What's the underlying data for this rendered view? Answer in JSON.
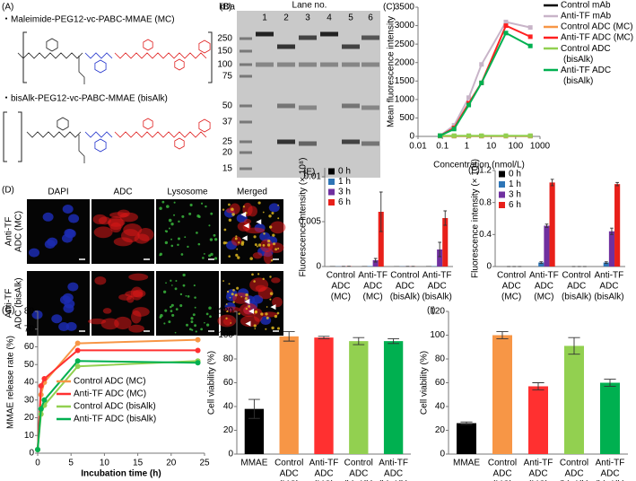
{
  "panel_a": {
    "label": "(A)",
    "items": [
      "・Maleimide-PEG12-vc-PABC-MMAE (MC)",
      "・bisAlk-PEG12-vc-PABC-MMAE (bisAlk)"
    ]
  },
  "panel_b": {
    "label": "(B)",
    "unit": "kDa",
    "lane_title": "Lane no.",
    "lanes": [
      "1",
      "2",
      "3",
      "4",
      "5",
      "6"
    ],
    "markers": [
      "250",
      "150",
      "100",
      "75",
      "50",
      "37",
      "25",
      "20",
      "15"
    ]
  },
  "panel_d": {
    "label": "(D)",
    "columns": [
      "DAPI",
      "ADC",
      "Lysosome",
      "Merged"
    ],
    "rows": [
      [
        "Anti-TF",
        "ADC (MC)"
      ],
      [
        "Anti-TF",
        "ADC (bisAlk)"
      ]
    ]
  },
  "chart_data": [
    {
      "type": "line",
      "panel": "(C)",
      "ylabel": "Mean fluorescence intensity",
      "xlabel": "Concentration (nmol/L)",
      "xscale": "log",
      "xlim": [
        0.01,
        1000
      ],
      "xticks": [
        0.01,
        0.1,
        1,
        10,
        100,
        1000
      ],
      "ylim": [
        0,
        3500
      ],
      "yticks": [
        0,
        500,
        1000,
        1500,
        2000,
        2500,
        3000,
        3500
      ],
      "marker": "square",
      "legend": "right",
      "x": [
        0.08,
        0.3,
        1.2,
        4,
        40,
        400
      ],
      "series": [
        {
          "name": "Control mAb",
          "color": "#000000",
          "values": [
            10,
            10,
            10,
            10,
            10,
            10
          ]
        },
        {
          "name": "Anti-TF mAb",
          "color": "#c8b4c8",
          "values": [
            20,
            300,
            1050,
            1950,
            3100,
            2950
          ]
        },
        {
          "name": "Control ADC (MC)",
          "color": "#f79646",
          "values": [
            10,
            10,
            10,
            10,
            10,
            10
          ]
        },
        {
          "name": "Anti-TF ADC (MC)",
          "color": "#ff2020",
          "values": [
            20,
            230,
            900,
            1450,
            3000,
            2700
          ]
        },
        {
          "name": "Control ADC (bisAlk)",
          "color": "#92d050",
          "values": [
            20,
            20,
            20,
            20,
            20,
            20
          ]
        },
        {
          "name": "Anti-TF ADC (bisAlk)",
          "color": "#00b050",
          "values": [
            20,
            200,
            850,
            1450,
            2800,
            2450
          ]
        }
      ]
    },
    {
      "type": "bar",
      "panel": "(E)",
      "ylabel": "Fluorescence intensity (× 10⁸)",
      "ylim": [
        0,
        0.011
      ],
      "yticks": [
        0,
        0.005,
        0.01
      ],
      "legend": "upper left",
      "categories": [
        [
          "Control",
          "ADC",
          "(MC)"
        ],
        [
          "Anti-TF",
          "ADC",
          "(MC)"
        ],
        [
          "Control",
          "ADC",
          "(bisAlk)"
        ],
        [
          "Anti-TF",
          "ADC",
          "(bisAlk)"
        ]
      ],
      "series": [
        {
          "name": "0 h",
          "color": "#000000",
          "values": [
            3e-05,
            3e-05,
            2e-05,
            3e-05
          ]
        },
        {
          "name": "1 h",
          "color": "#2e75b6",
          "values": [
            2e-05,
            5e-05,
            2e-05,
            4e-05
          ]
        },
        {
          "name": "3 h",
          "color": "#7030a0",
          "values": [
            2e-05,
            0.0007,
            2e-05,
            0.0019
          ],
          "errors": [
            0,
            0.0002,
            0,
            0.0008
          ]
        },
        {
          "name": "6 h",
          "color": "#e8201a",
          "values": [
            3e-05,
            0.0061,
            2e-05,
            0.0054
          ],
          "errors": [
            0,
            0.0022,
            0,
            0.0008
          ]
        }
      ]
    },
    {
      "type": "bar",
      "panel": "(F)",
      "ylabel": "Fluorescence intensity (× 10⁸)",
      "ylim": [
        0,
        1.2
      ],
      "yticks": [
        0,
        0.4,
        0.8,
        1.2
      ],
      "legend": "upper left",
      "categories": [
        [
          "Control",
          "ADC",
          "(MC)"
        ],
        [
          "Anti-TF",
          "ADC",
          "(MC)"
        ],
        [
          "Control",
          "ADC",
          "(bisAlk)"
        ],
        [
          "Anti-TF",
          "ADC",
          "(bisAlk)"
        ]
      ],
      "series": [
        {
          "name": "0 h",
          "color": "#000000",
          "values": [
            0,
            0,
            0,
            0
          ]
        },
        {
          "name": "1 h",
          "color": "#2e75b6",
          "values": [
            0,
            0.05,
            0,
            0.05
          ],
          "errors": [
            0,
            0.01,
            0,
            0.01
          ]
        },
        {
          "name": "3 h",
          "color": "#7030a0",
          "values": [
            0,
            0.51,
            0,
            0.44
          ],
          "errors": [
            0,
            0.02,
            0,
            0.04
          ]
        },
        {
          "name": "6 h",
          "color": "#e8201a",
          "values": [
            0,
            1.05,
            0,
            1.03
          ],
          "errors": [
            0,
            0.04,
            0,
            0.02
          ]
        }
      ]
    },
    {
      "type": "line",
      "panel": "(G)",
      "ylabel": "MMAE release rate (%)",
      "xlabel": "Incubation time (h)",
      "xlim": [
        0,
        25
      ],
      "xticks": [
        0,
        5,
        10,
        15,
        20,
        25
      ],
      "ylim": [
        0,
        80
      ],
      "yticks": [
        0,
        10,
        20,
        30,
        40,
        50,
        60,
        70,
        80
      ],
      "marker": "circle",
      "legend": "lower right",
      "x": [
        0,
        0.5,
        1,
        6,
        24
      ],
      "series": [
        {
          "name": "Control ADC (MC)",
          "color": "#f79646",
          "values": [
            2,
            33,
            40,
            62,
            64
          ]
        },
        {
          "name": "Anti-TF ADC (MC)",
          "color": "#ff3030",
          "values": [
            2,
            38,
            42,
            58,
            58
          ]
        },
        {
          "name": "Control ADC (bisAlk)",
          "color": "#92d050",
          "values": [
            2,
            22,
            27,
            49,
            52
          ]
        },
        {
          "name": "Anti-TF ADC (bisAlk)",
          "color": "#00b050",
          "values": [
            2,
            25,
            30,
            52,
            51
          ]
        }
      ]
    },
    {
      "type": "bar",
      "panel": "(H)",
      "ylabel": "Cell viability (%)",
      "ylim": [
        0,
        120
      ],
      "yticks": [
        0,
        20,
        40,
        60,
        80,
        100,
        120
      ],
      "categories": [
        [
          "MMAE"
        ],
        [
          "Control",
          "ADC",
          "(MC)"
        ],
        [
          "Anti-TF",
          "ADC",
          "(MC)"
        ],
        [
          "Control",
          "ADC",
          "(bisAlk)"
        ],
        [
          "Anti-TF",
          "ADC",
          "(bisAlk)"
        ]
      ],
      "values": [
        38,
        99,
        98,
        95,
        95
      ],
      "errors": [
        8,
        4,
        1,
        3,
        2
      ],
      "colors": [
        "#000000",
        "#f79646",
        "#ff3030",
        "#92d050",
        "#00b050"
      ]
    },
    {
      "type": "bar",
      "panel": "(I)",
      "ylabel": "Cell viability (%)",
      "ylim": [
        0,
        120
      ],
      "yticks": [
        0,
        20,
        40,
        60,
        80,
        100,
        120
      ],
      "categories": [
        [
          "MMAE"
        ],
        [
          "Control",
          "ADC",
          "(MC)"
        ],
        [
          "Anti-TF",
          "ADC",
          "(MC)"
        ],
        [
          "Control",
          "ADC",
          "(bisAlk)"
        ],
        [
          "Anti-TF",
          "ADC",
          "(bisAlk)"
        ]
      ],
      "values": [
        26,
        100,
        57,
        91,
        60
      ],
      "errors": [
        1,
        3,
        3,
        7,
        3
      ],
      "colors": [
        "#000000",
        "#f79646",
        "#ff3030",
        "#92d050",
        "#00b050"
      ]
    }
  ]
}
